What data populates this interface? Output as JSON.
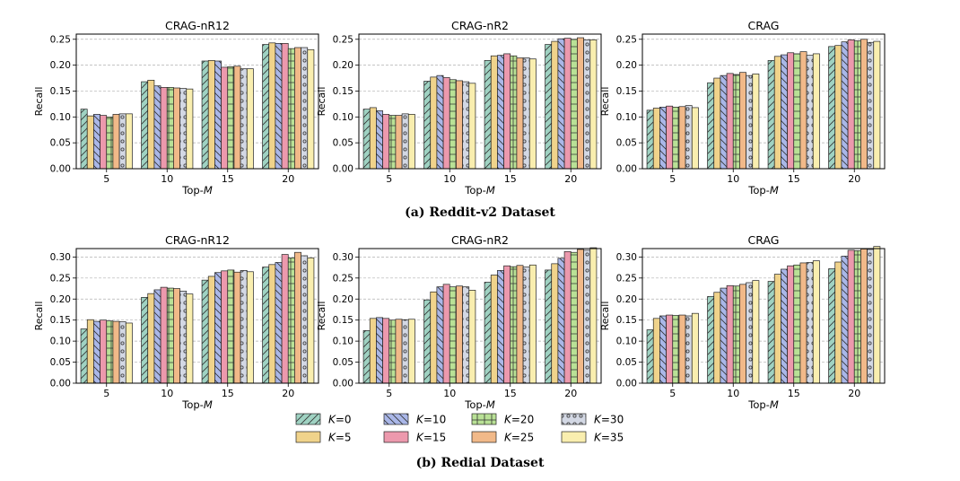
{
  "captions": {
    "a": "(a) Reddit-v2 Dataset",
    "b": "(b) Redial Dataset"
  },
  "legend": [
    {
      "label": "K=0",
      "color": "#9fd2c2",
      "pattern": "diag"
    },
    {
      "label": "K=5",
      "color": "#f0d38b",
      "pattern": "none"
    },
    {
      "label": "K=10",
      "color": "#aab7e8",
      "pattern": "backdiag"
    },
    {
      "label": "K=15",
      "color": "#ec99ad",
      "pattern": "none"
    },
    {
      "label": "K=20",
      "color": "#b9e196",
      "pattern": "grid"
    },
    {
      "label": "K=25",
      "color": "#f1b989",
      "pattern": "none"
    },
    {
      "label": "K=30",
      "color": "#d3d8e4",
      "pattern": "dots"
    },
    {
      "label": "K=35",
      "color": "#f9eeaf",
      "pattern": "none"
    }
  ],
  "chart_data": [
    {
      "type": "bar",
      "dataset": "Reddit-v2",
      "title": "CRAG-nR12",
      "xlabel": "Top-M",
      "ylabel": "Recall",
      "categories": [
        "5",
        "10",
        "15",
        "20"
      ],
      "ylim": [
        0,
        0.26
      ],
      "yticks": [
        "0.00",
        "0.05",
        "0.10",
        "0.15",
        "0.20",
        "0.25"
      ],
      "series": [
        {
          "name": "K=0",
          "values": [
            0.115,
            0.168,
            0.208,
            0.24
          ]
        },
        {
          "name": "K=5",
          "values": [
            0.102,
            0.171,
            0.209,
            0.243
          ]
        },
        {
          "name": "K=10",
          "values": [
            0.105,
            0.16,
            0.208,
            0.242
          ]
        },
        {
          "name": "K=15",
          "values": [
            0.103,
            0.157,
            0.196,
            0.242
          ]
        },
        {
          "name": "K=20",
          "values": [
            0.1,
            0.157,
            0.197,
            0.232
          ]
        },
        {
          "name": "K=25",
          "values": [
            0.105,
            0.156,
            0.198,
            0.234
          ]
        },
        {
          "name": "K=30",
          "values": [
            0.106,
            0.155,
            0.193,
            0.234
          ]
        },
        {
          "name": "K=35",
          "values": [
            0.106,
            0.154,
            0.193,
            0.23
          ]
        }
      ]
    },
    {
      "type": "bar",
      "dataset": "Reddit-v2",
      "title": "CRAG-nR2",
      "xlabel": "Top-M",
      "ylabel": "Recall",
      "categories": [
        "5",
        "10",
        "15",
        "20"
      ],
      "ylim": [
        0,
        0.26
      ],
      "yticks": [
        "0.00",
        "0.05",
        "0.10",
        "0.15",
        "0.20",
        "0.25"
      ],
      "series": [
        {
          "name": "K=0",
          "values": [
            0.115,
            0.169,
            0.209,
            0.24
          ]
        },
        {
          "name": "K=5",
          "values": [
            0.118,
            0.177,
            0.218,
            0.246
          ]
        },
        {
          "name": "K=10",
          "values": [
            0.112,
            0.18,
            0.219,
            0.251
          ]
        },
        {
          "name": "K=15",
          "values": [
            0.105,
            0.176,
            0.222,
            0.252
          ]
        },
        {
          "name": "K=20",
          "values": [
            0.103,
            0.172,
            0.218,
            0.25
          ]
        },
        {
          "name": "K=25",
          "values": [
            0.103,
            0.17,
            0.214,
            0.253
          ]
        },
        {
          "name": "K=30",
          "values": [
            0.106,
            0.168,
            0.214,
            0.249
          ]
        },
        {
          "name": "K=35",
          "values": [
            0.105,
            0.165,
            0.212,
            0.249
          ]
        }
      ]
    },
    {
      "type": "bar",
      "dataset": "Reddit-v2",
      "title": "CRAG",
      "xlabel": "Top-M",
      "ylabel": "Recall",
      "categories": [
        "5",
        "10",
        "15",
        "20"
      ],
      "ylim": [
        0,
        0.26
      ],
      "yticks": [
        "0.00",
        "0.05",
        "0.10",
        "0.15",
        "0.20",
        "0.25"
      ],
      "series": [
        {
          "name": "K=0",
          "values": [
            0.113,
            0.166,
            0.209,
            0.236
          ]
        },
        {
          "name": "K=5",
          "values": [
            0.117,
            0.175,
            0.217,
            0.238
          ]
        },
        {
          "name": "K=10",
          "values": [
            0.119,
            0.18,
            0.22,
            0.245
          ]
        },
        {
          "name": "K=15",
          "values": [
            0.121,
            0.184,
            0.224,
            0.249
          ]
        },
        {
          "name": "K=20",
          "values": [
            0.119,
            0.182,
            0.222,
            0.247
          ]
        },
        {
          "name": "K=25",
          "values": [
            0.12,
            0.186,
            0.226,
            0.25
          ]
        },
        {
          "name": "K=30",
          "values": [
            0.122,
            0.18,
            0.219,
            0.244
          ]
        },
        {
          "name": "K=35",
          "values": [
            0.118,
            0.183,
            0.222,
            0.246
          ]
        }
      ]
    },
    {
      "type": "bar",
      "dataset": "Redial",
      "title": "CRAG-nR12",
      "xlabel": "Top-M",
      "ylabel": "Recall",
      "categories": [
        "5",
        "10",
        "15",
        "20"
      ],
      "ylim": [
        0,
        0.32
      ],
      "yticks": [
        "0.00",
        "0.05",
        "0.10",
        "0.15",
        "0.20",
        "0.25",
        "0.30"
      ],
      "series": [
        {
          "name": "K=0",
          "values": [
            0.129,
            0.204,
            0.245,
            0.276
          ]
        },
        {
          "name": "K=5",
          "values": [
            0.151,
            0.213,
            0.254,
            0.282
          ]
        },
        {
          "name": "K=10",
          "values": [
            0.147,
            0.222,
            0.263,
            0.287
          ]
        },
        {
          "name": "K=15",
          "values": [
            0.15,
            0.228,
            0.267,
            0.306
          ]
        },
        {
          "name": "K=20",
          "values": [
            0.148,
            0.226,
            0.269,
            0.298
          ]
        },
        {
          "name": "K=25",
          "values": [
            0.147,
            0.225,
            0.264,
            0.311
          ]
        },
        {
          "name": "K=30",
          "values": [
            0.146,
            0.219,
            0.268,
            0.303
          ]
        },
        {
          "name": "K=35",
          "values": [
            0.143,
            0.212,
            0.265,
            0.298
          ]
        }
      ]
    },
    {
      "type": "bar",
      "dataset": "Redial",
      "title": "CRAG-nR2",
      "xlabel": "Top-M",
      "ylabel": "Recall",
      "categories": [
        "5",
        "10",
        "15",
        "20"
      ],
      "ylim": [
        0,
        0.32
      ],
      "yticks": [
        "0.00",
        "0.05",
        "0.10",
        "0.15",
        "0.20",
        "0.25",
        "0.30"
      ],
      "series": [
        {
          "name": "K=0",
          "values": [
            0.125,
            0.198,
            0.24,
            0.269
          ]
        },
        {
          "name": "K=5",
          "values": [
            0.154,
            0.217,
            0.257,
            0.284
          ]
        },
        {
          "name": "K=10",
          "values": [
            0.156,
            0.229,
            0.268,
            0.297
          ]
        },
        {
          "name": "K=15",
          "values": [
            0.154,
            0.235,
            0.279,
            0.313
          ]
        },
        {
          "name": "K=20",
          "values": [
            0.15,
            0.229,
            0.277,
            0.311
          ]
        },
        {
          "name": "K=25",
          "values": [
            0.152,
            0.231,
            0.28,
            0.318
          ]
        },
        {
          "name": "K=30",
          "values": [
            0.151,
            0.229,
            0.276,
            0.316
          ]
        },
        {
          "name": "K=35",
          "values": [
            0.152,
            0.221,
            0.281,
            0.322
          ]
        }
      ]
    },
    {
      "type": "bar",
      "dataset": "Redial",
      "title": "CRAG",
      "xlabel": "Top-M",
      "ylabel": "Recall",
      "categories": [
        "5",
        "10",
        "15",
        "20"
      ],
      "ylim": [
        0,
        0.32
      ],
      "yticks": [
        "0.00",
        "0.05",
        "0.10",
        "0.15",
        "0.20",
        "0.25",
        "0.30"
      ],
      "series": [
        {
          "name": "K=0",
          "values": [
            0.127,
            0.206,
            0.242,
            0.272
          ]
        },
        {
          "name": "K=5",
          "values": [
            0.154,
            0.216,
            0.259,
            0.288
          ]
        },
        {
          "name": "K=10",
          "values": [
            0.16,
            0.226,
            0.271,
            0.302
          ]
        },
        {
          "name": "K=15",
          "values": [
            0.162,
            0.232,
            0.279,
            0.316
          ]
        },
        {
          "name": "K=20",
          "values": [
            0.161,
            0.231,
            0.281,
            0.315
          ]
        },
        {
          "name": "K=25",
          "values": [
            0.162,
            0.235,
            0.286,
            0.319
          ]
        },
        {
          "name": "K=30",
          "values": [
            0.16,
            0.239,
            0.287,
            0.318
          ]
        },
        {
          "name": "K=35",
          "values": [
            0.166,
            0.244,
            0.291,
            0.325
          ]
        }
      ]
    }
  ]
}
